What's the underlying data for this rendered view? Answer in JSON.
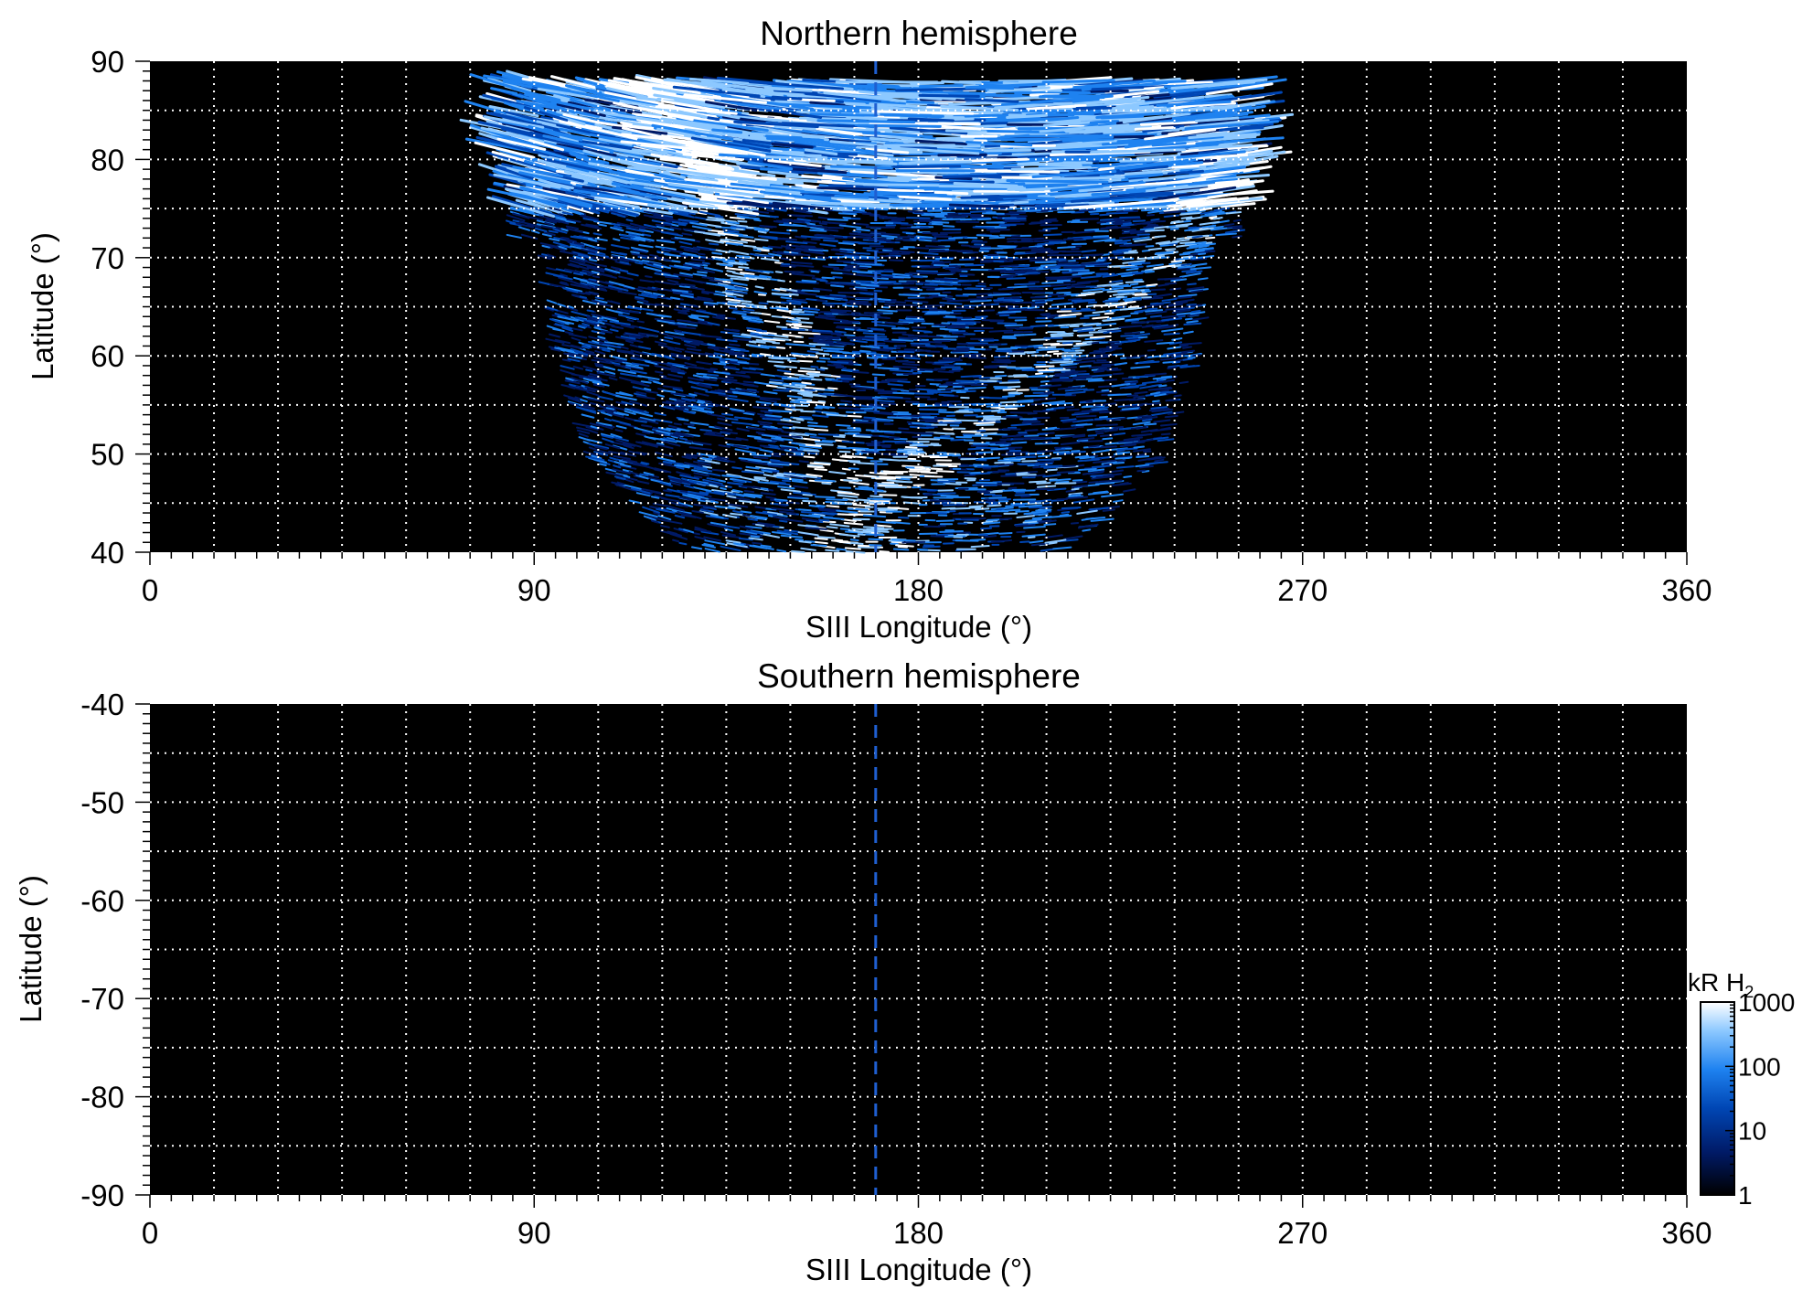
{
  "chart_data": [
    {
      "type": "heatmap",
      "title": "Northern hemisphere",
      "xlabel": "SIII Longitude (°)",
      "ylabel": "Latitude (°)",
      "xlim": [
        0,
        360
      ],
      "ylim": [
        40,
        90
      ],
      "xticks": [
        "0",
        "90",
        "180",
        "270",
        "360"
      ],
      "yticks": [
        "40",
        "50",
        "60",
        "70",
        "80",
        "90"
      ],
      "grid": true,
      "grid_color": "#ffffff",
      "background_color": "#000000",
      "reference_line": {
        "longitude": 170,
        "style": "dashed",
        "color": "#1f5fd1"
      },
      "emission_region": {
        "longitude_range": [
          85,
          255
        ],
        "latitude_range": [
          40,
          88
        ],
        "bright_polar_cap_latitude": [
          75,
          88
        ],
        "main_oval_longitude_at_60": [
          150,
          210
        ]
      }
    },
    {
      "type": "heatmap",
      "title": "Southern hemisphere",
      "xlabel": "SIII Longitude (°)",
      "ylabel": "Latitude (°)",
      "xlim": [
        0,
        360
      ],
      "ylim": [
        -90,
        -40
      ],
      "xticks": [
        "0",
        "90",
        "180",
        "270",
        "360"
      ],
      "yticks": [
        "-40",
        "-50",
        "-60",
        "-70",
        "-80",
        "-90"
      ],
      "grid": true,
      "grid_color": "#ffffff",
      "background_color": "#000000",
      "reference_line": {
        "longitude": 170,
        "style": "dashed",
        "color": "#1f5fd1"
      }
    }
  ],
  "colorbar": {
    "label": "kR H",
    "label_subscript": "2",
    "scale": "log",
    "range": [
      1,
      1000
    ],
    "ticks": [
      "1",
      "10",
      "100",
      "1000"
    ],
    "colors": [
      "#000000",
      "#001a66",
      "#0046b4",
      "#1e82f0",
      "#8cc8ff",
      "#ffffff"
    ]
  }
}
